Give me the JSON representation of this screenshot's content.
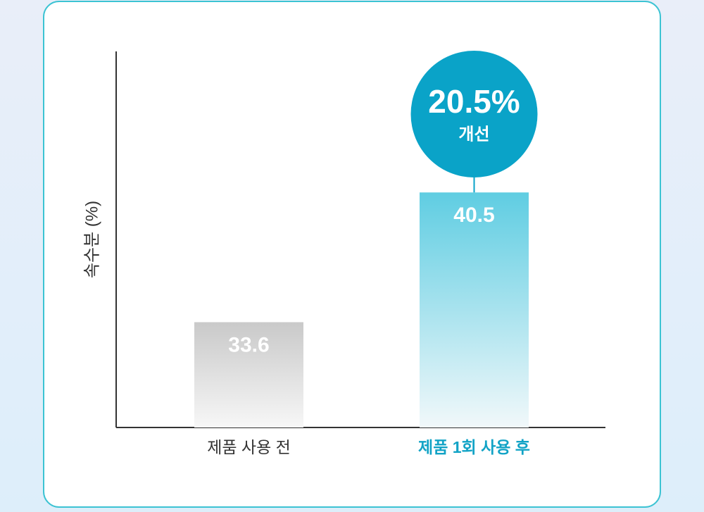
{
  "chart_data": {
    "type": "bar",
    "y_label": "속수분 (%)",
    "categories": [
      "제품 사용 전",
      "제품 1회 사용 후"
    ],
    "values": [
      33.6,
      40.5
    ],
    "colors": [
      "#c9c9c9",
      "#5fcde2"
    ],
    "category_colors": [
      "#333333",
      "#12a3c6"
    ],
    "ylim": [
      28,
      48
    ],
    "annotation": {
      "text": "20.5%",
      "subtext": "개선",
      "category": 1,
      "color": "#0aa3c8"
    }
  }
}
